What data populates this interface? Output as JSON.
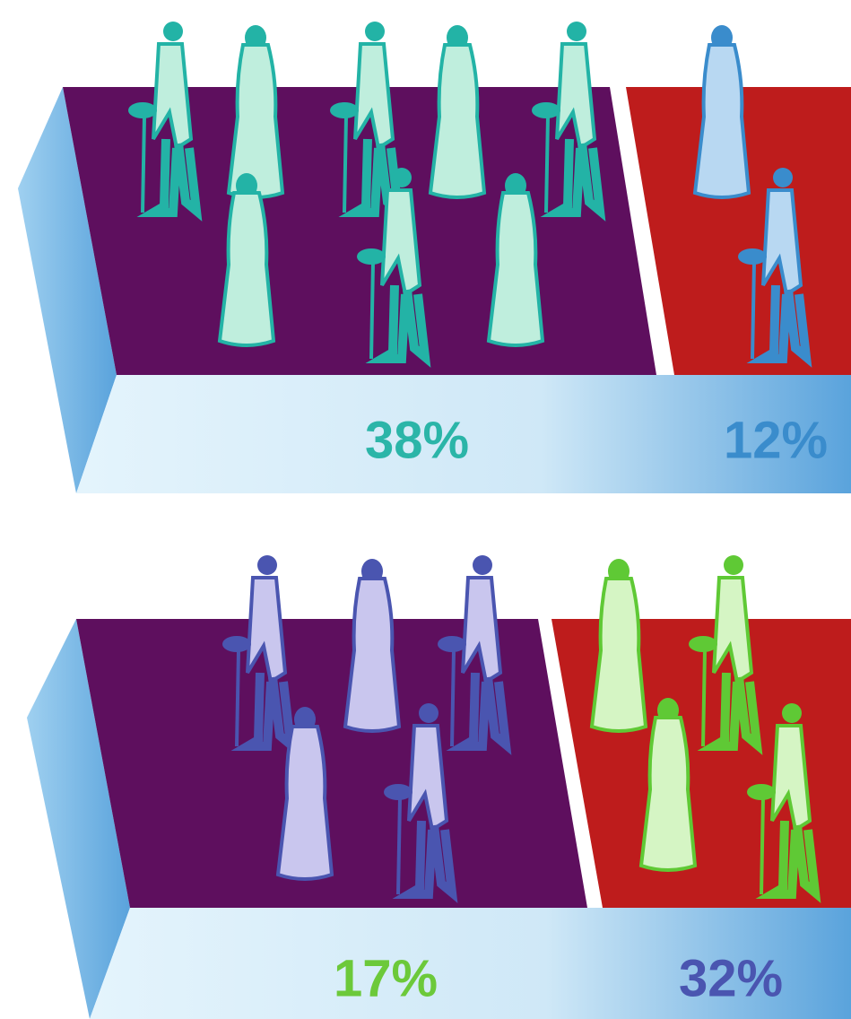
{
  "panels": [
    {
      "labels": [
        {
          "text": "38%",
          "color": "#2bb5a8"
        },
        {
          "text": "12%",
          "color": "#3a8ccc"
        }
      ]
    },
    {
      "labels": [
        {
          "text": "17%",
          "color": "#6cc93a"
        },
        {
          "text": "32%",
          "color": "#4a55b0"
        }
      ]
    }
  ]
}
